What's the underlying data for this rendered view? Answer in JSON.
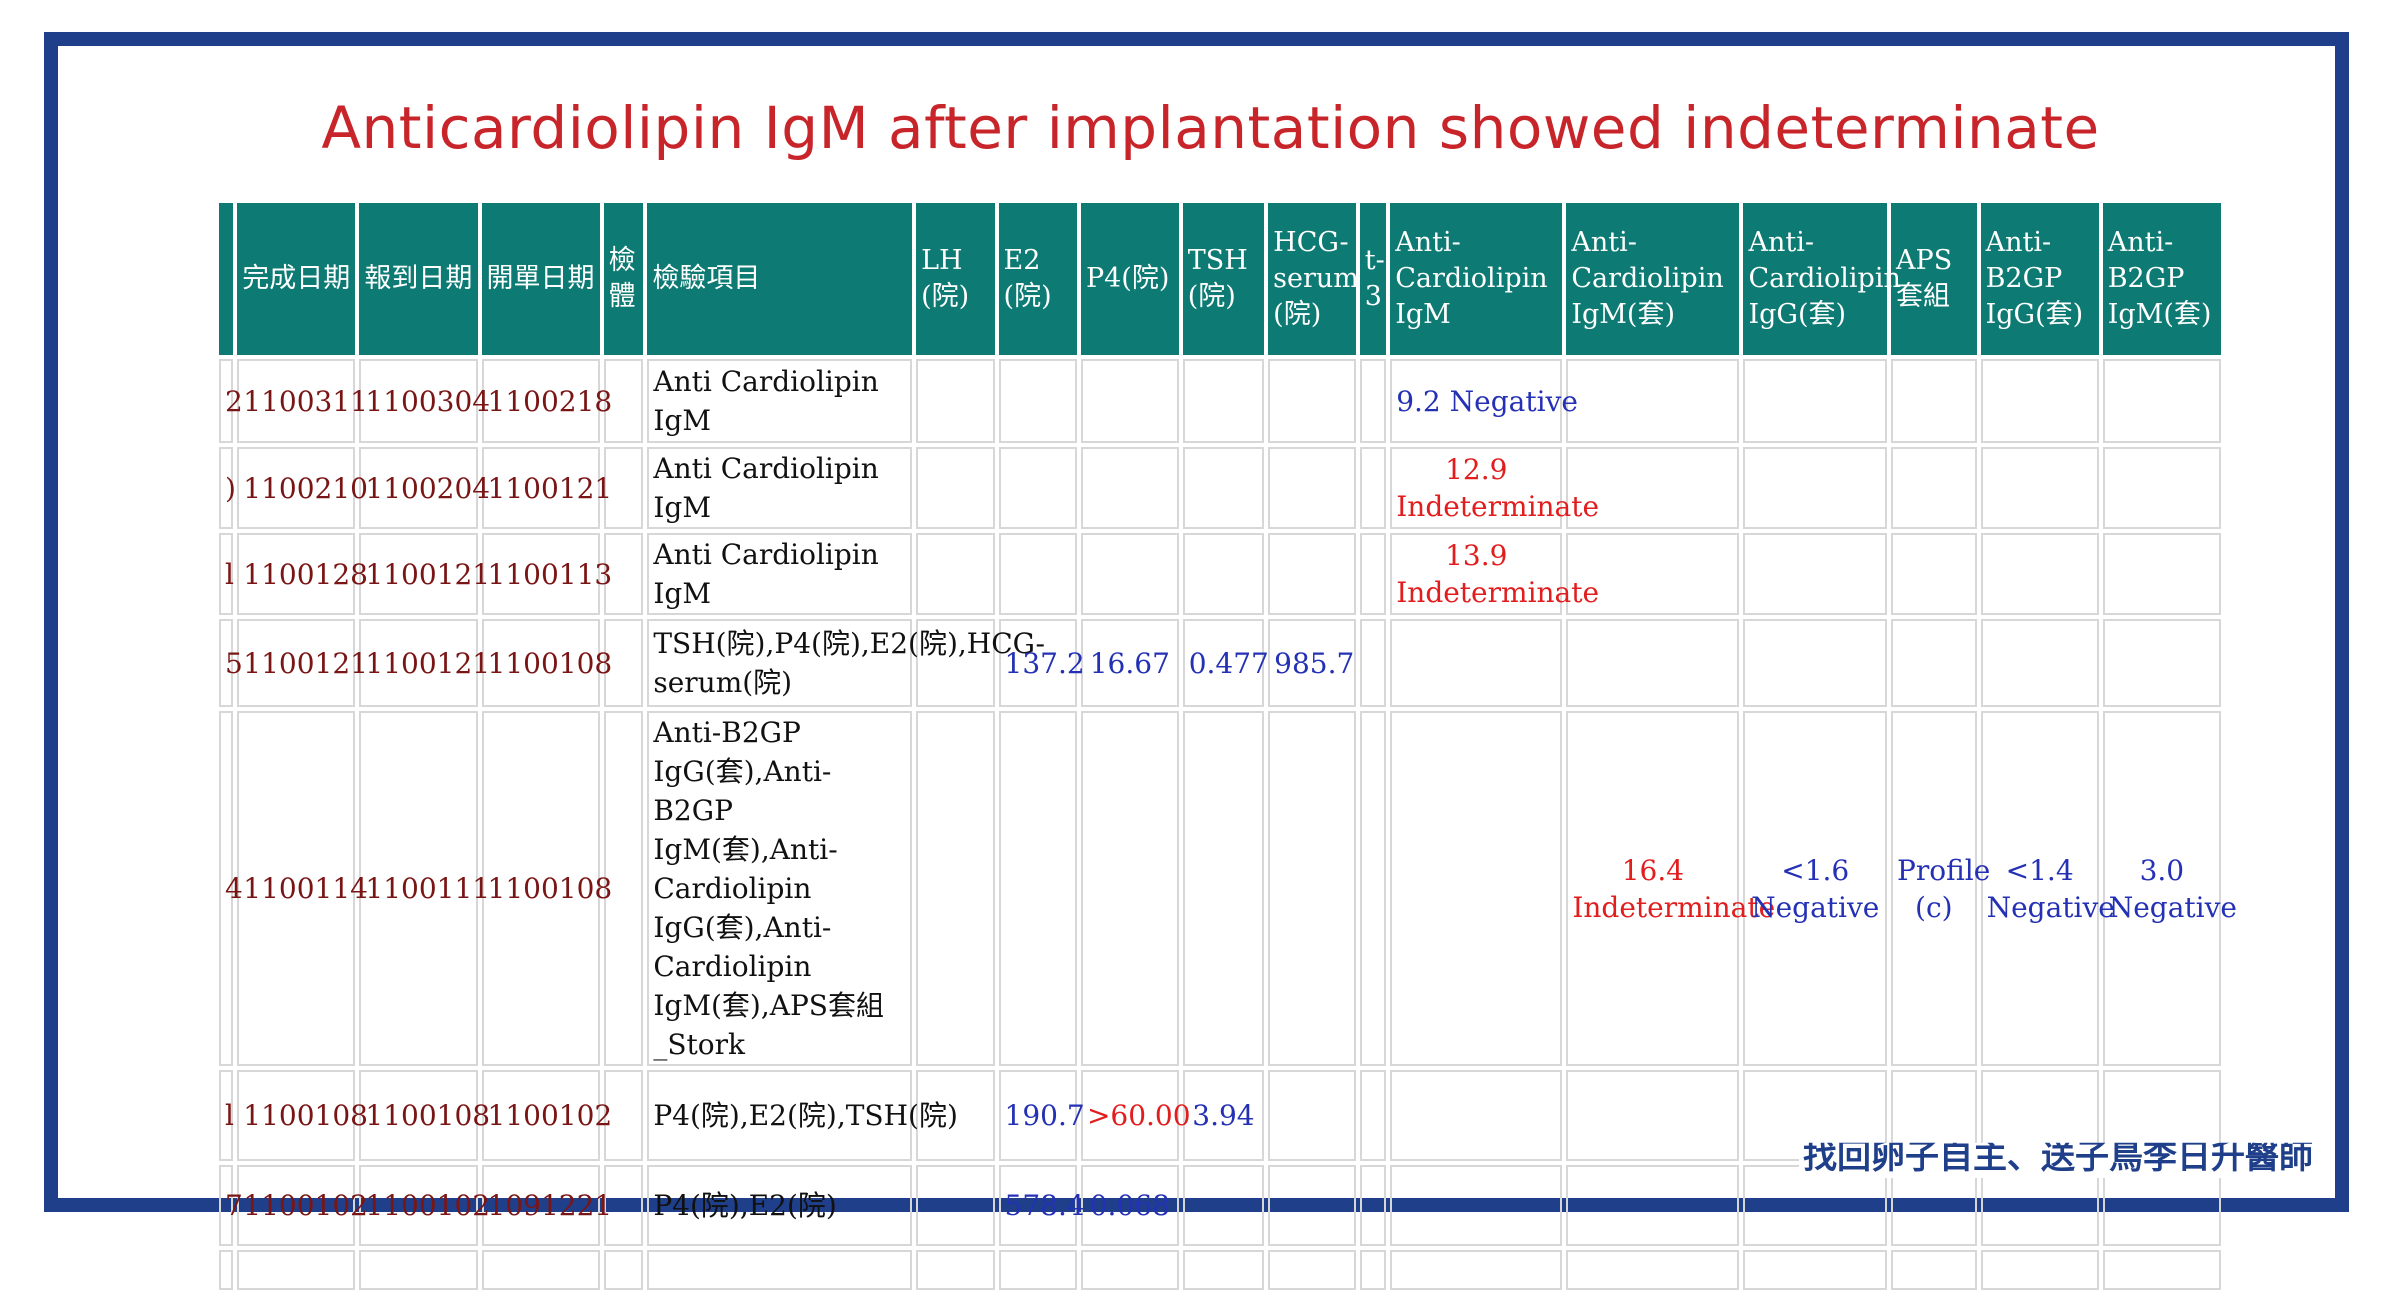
{
  "title": "Anticardiolipin IgM after implantation showed indeterminate",
  "columns": [
    "",
    "完成日期",
    "報到日期",
    "開單日期",
    "檢體",
    "檢驗項目",
    "LH (院)",
    "E2 (院)",
    "P4(院)",
    "TSH (院)",
    "HCG-serum (院)",
    "t-3",
    "Anti-Cardiolipin IgM",
    "Anti-Cardiolipin IgM(套)",
    "Anti-Cardiolipin IgG(套)",
    "APS套組",
    "Anti-B2GP IgG(套)",
    "Anti-B2GP IgM(套)"
  ],
  "rows": [
    {
      "clip": "2",
      "done": "1100311",
      "report": "1100304",
      "order": "1100218",
      "item": "Anti Cardiolipin IgM",
      "lh": "",
      "e2": "",
      "p4": "",
      "tsh": "",
      "hcg": "",
      "t3": "",
      "acl_igm": "9.2 Negative",
      "acl_igm_set": "",
      "acl_igg_set": "",
      "aps": "",
      "b2gp_igg": "",
      "b2gp_igm": ""
    },
    {
      "clip": ")",
      "done": "1100210",
      "report": "1100204",
      "order": "1100121",
      "item": "Anti Cardiolipin IgM",
      "lh": "",
      "e2": "",
      "p4": "",
      "tsh": "",
      "hcg": "",
      "t3": "",
      "acl_igm": "12.9 Indeterminate",
      "acl_igm_set": "",
      "acl_igg_set": "",
      "aps": "",
      "b2gp_igg": "",
      "b2gp_igm": ""
    },
    {
      "clip": "l",
      "done": "1100128",
      "report": "1100121",
      "order": "1100113",
      "item": "Anti Cardiolipin IgM",
      "lh": "",
      "e2": "",
      "p4": "",
      "tsh": "",
      "hcg": "",
      "t3": "",
      "acl_igm": "13.9 Indeterminate",
      "acl_igm_set": "",
      "acl_igg_set": "",
      "aps": "",
      "b2gp_igg": "",
      "b2gp_igm": ""
    },
    {
      "clip": "5",
      "done": "1100121",
      "report": "1100121",
      "order": "1100108",
      "item": "TSH(院),P4(院),E2(院),HCG-serum(院)",
      "lh": "",
      "e2": "137.2",
      "p4": "16.67",
      "tsh": "0.477",
      "hcg": "985.7",
      "t3": "",
      "acl_igm": "",
      "acl_igm_set": "",
      "acl_igg_set": "",
      "aps": "",
      "b2gp_igg": "",
      "b2gp_igm": ""
    },
    {
      "clip": "4",
      "done": "1100114",
      "report": "1100111",
      "order": "1100108",
      "item": "Anti-B2GP IgG(套),Anti-B2GP IgM(套),Anti-Cardiolipin IgG(套),Anti-Cardiolipin IgM(套),APS套組_Stork",
      "lh": "",
      "e2": "",
      "p4": "",
      "tsh": "",
      "hcg": "",
      "t3": "",
      "acl_igm": "",
      "acl_igm_set": "16.4 Indeterminate",
      "acl_igg_set": "<1.6 Negative",
      "aps": "Profile (c)",
      "b2gp_igg": "<1.4 Negative",
      "b2gp_igm": "3.0 Negative"
    },
    {
      "clip": "l",
      "done": "1100108",
      "report": "1100108",
      "order": "1100102",
      "item": "P4(院),E2(院),TSH(院)",
      "lh": "",
      "e2": "190.7",
      "p4": ">60.00",
      "tsh": "3.94",
      "hcg": "",
      "t3": "",
      "acl_igm": "",
      "acl_igm_set": "",
      "acl_igg_set": "",
      "aps": "",
      "b2gp_igg": "",
      "b2gp_igm": ""
    },
    {
      "clip": "7",
      "done": "1100102",
      "report": "1100102",
      "order": "1091221",
      "item": "P4(院),E2(院)",
      "lh": "",
      "e2": "578.4",
      "p4": "0.068",
      "tsh": "",
      "hcg": "",
      "t3": "",
      "acl_igm": "",
      "acl_igm_set": "",
      "acl_igg_set": "",
      "aps": "",
      "b2gp_igg": "",
      "b2gp_igm": ""
    }
  ],
  "watermark": "找回卵子自主、送子鳥李日升醫師",
  "colors": {
    "frame": "#1f3f8a",
    "title": "#c8252b",
    "header": "#0d7a73",
    "date_text": "#7a1515",
    "value_blue": "#2431b5",
    "value_red": "#e11d1d"
  }
}
